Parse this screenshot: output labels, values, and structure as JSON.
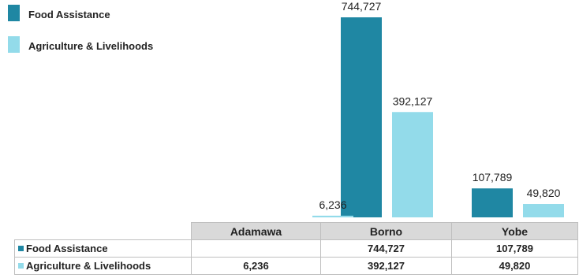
{
  "chart_data": {
    "type": "bar",
    "categories": [
      "Adamawa",
      "Borno",
      "Yobe"
    ],
    "series": [
      {
        "name": "Food Assistance",
        "color": "#1f87a3",
        "values": [
          null,
          744727,
          107789
        ],
        "labels": [
          "",
          "744,727",
          "107,789"
        ]
      },
      {
        "name": "Agriculture & Livelihoods",
        "color": "#93dbea",
        "values": [
          6236,
          392127,
          49820
        ],
        "labels": [
          "6,236",
          "392,127",
          "49,820"
        ]
      }
    ],
    "ylim": [
      0,
      760000
    ],
    "legend": "top-left",
    "grid": false,
    "data_table": true
  }
}
